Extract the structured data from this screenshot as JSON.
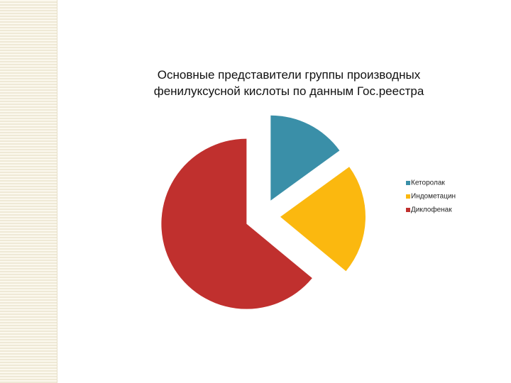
{
  "chart_data": {
    "type": "pie",
    "title": "Основные представители группы производных фенилуксусной кислоты по данным Гос.реестра",
    "categories": [
      "Кеторолак",
      "Индометацин",
      "Диклофенак"
    ],
    "values": [
      15,
      21,
      64
    ],
    "colors": [
      "#3a8fa8",
      "#fbb80f",
      "#c0302e"
    ],
    "exploded": true,
    "legend": "right"
  }
}
